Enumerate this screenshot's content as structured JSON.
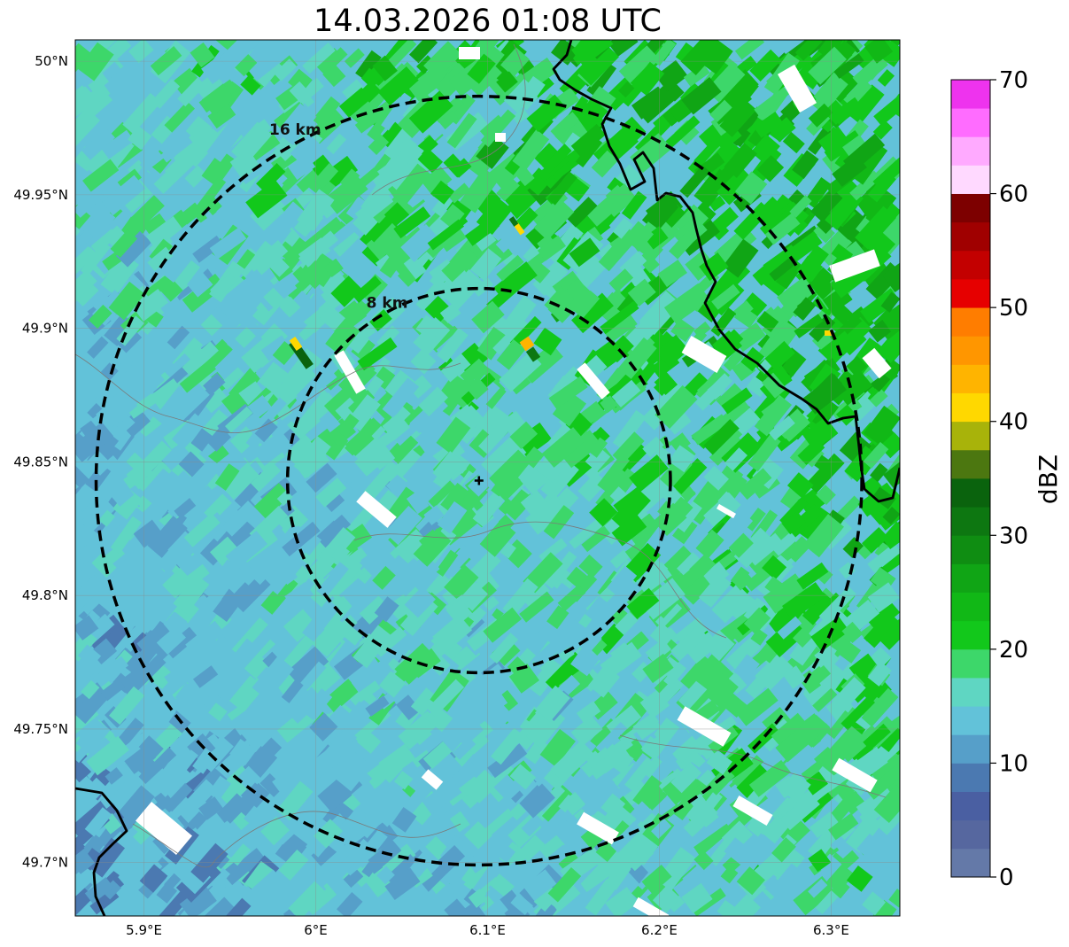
{
  "title": "14.03.2026 01:08 UTC",
  "map": {
    "lon_range": [
      5.86,
      6.34
    ],
    "lat_range": [
      49.68,
      50.008
    ],
    "radar_site": {
      "lon": 6.095,
      "lat": 49.843
    },
    "lat_ticks": [
      {
        "value": 50.0,
        "label": "50°N"
      },
      {
        "value": 49.95,
        "label": "49.95°N"
      },
      {
        "value": 49.9,
        "label": "49.9°N"
      },
      {
        "value": 49.85,
        "label": "49.85°N"
      },
      {
        "value": 49.8,
        "label": "49.8°N"
      },
      {
        "value": 49.75,
        "label": "49.75°N"
      },
      {
        "value": 49.7,
        "label": "49.7°N"
      }
    ],
    "lon_ticks": [
      {
        "value": 5.9,
        "label": "5.9°E"
      },
      {
        "value": 6.0,
        "label": "6°E"
      },
      {
        "value": 6.1,
        "label": "6.1°E"
      },
      {
        "value": 6.2,
        "label": "6.2°E"
      },
      {
        "value": 6.3,
        "label": "6.3°E"
      }
    ],
    "range_rings": [
      {
        "km": 8,
        "label": "8 km"
      },
      {
        "km": 16,
        "label": "16 km"
      }
    ],
    "gridlines": true
  },
  "colorbar": {
    "label": "dBZ",
    "min": 0,
    "max": 70,
    "tick_values": [
      0,
      10,
      20,
      30,
      40,
      50,
      60,
      70
    ],
    "tick_labels": [
      "0",
      "10",
      "20",
      "30",
      "40",
      "50",
      "60",
      "70"
    ],
    "colors": [
      "#6479a8",
      "#56679f",
      "#4a5fa2",
      "#4b79b1",
      "#569fc9",
      "#62c2d9",
      "#5fd6c2",
      "#3dd76a",
      "#12c81b",
      "#11b816",
      "#10a515",
      "#0f8d12",
      "#0d7711",
      "#0a630d",
      "#4c7710",
      "#a8b30a",
      "#ffd800",
      "#ffb400",
      "#ff9600",
      "#ff7d00",
      "#e60000",
      "#c30000",
      "#a00000",
      "#7d0000",
      "#ffd9ff",
      "#ffaaff",
      "#ff6cff",
      "#ee33ee"
    ]
  }
}
